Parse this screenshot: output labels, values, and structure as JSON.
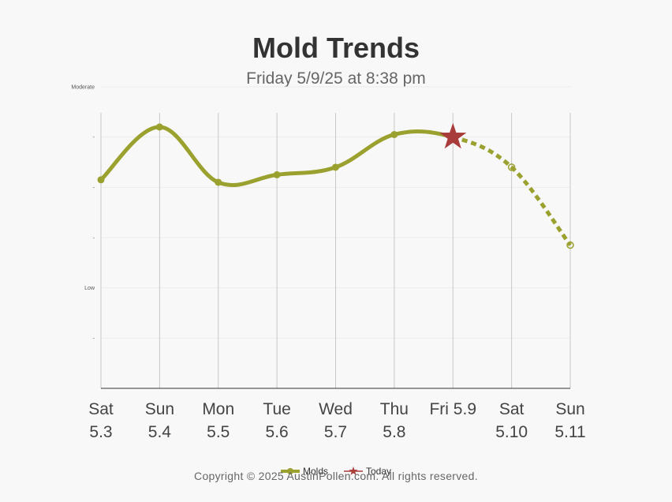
{
  "header": {
    "title": "Mold Trends",
    "subtitle": "Friday 5/9/25 at 8:38 pm"
  },
  "footer": {
    "copyright": "Copyright © 2025 AustinPollen.com.  All rights reserved."
  },
  "colors": {
    "series": "#9aa12e",
    "today_marker": "#a83c3a",
    "gridline": "#c8c8c8",
    "axis": "#333333"
  },
  "chart_data": {
    "type": "line",
    "title": "Mold Trends",
    "subtitle": "Friday 5/9/25 at 8:38 pm",
    "categories": [
      [
        "Sat",
        "5.3"
      ],
      [
        "Sun",
        "5.4"
      ],
      [
        "Mon",
        "5.5"
      ],
      [
        "Tue",
        "5.6"
      ],
      [
        "Wed",
        "5.7"
      ],
      [
        "Thu",
        "5.8"
      ],
      [
        "Fri 5.9",
        ""
      ],
      [
        "Sat",
        "5.10"
      ],
      [
        "Sun",
        "5.11"
      ]
    ],
    "y_ticks": [
      "Moderate",
      "-",
      "-",
      "-",
      "Low",
      "-"
    ],
    "y_tick_values": [
      6,
      5,
      4,
      3,
      2,
      1
    ],
    "ylim": [
      0,
      6
    ],
    "series": [
      {
        "name": "Molds",
        "values": [
          4.15,
          5.2,
          4.1,
          4.25,
          4.4,
          5.05,
          5.0,
          4.4,
          2.85
        ],
        "forecast_from_index": 6
      }
    ],
    "today_index": 6,
    "legend": {
      "placement": "bottom-center",
      "items": [
        "Molds",
        "Today"
      ]
    },
    "grid": {
      "vertical": true,
      "horizontal": true
    }
  }
}
